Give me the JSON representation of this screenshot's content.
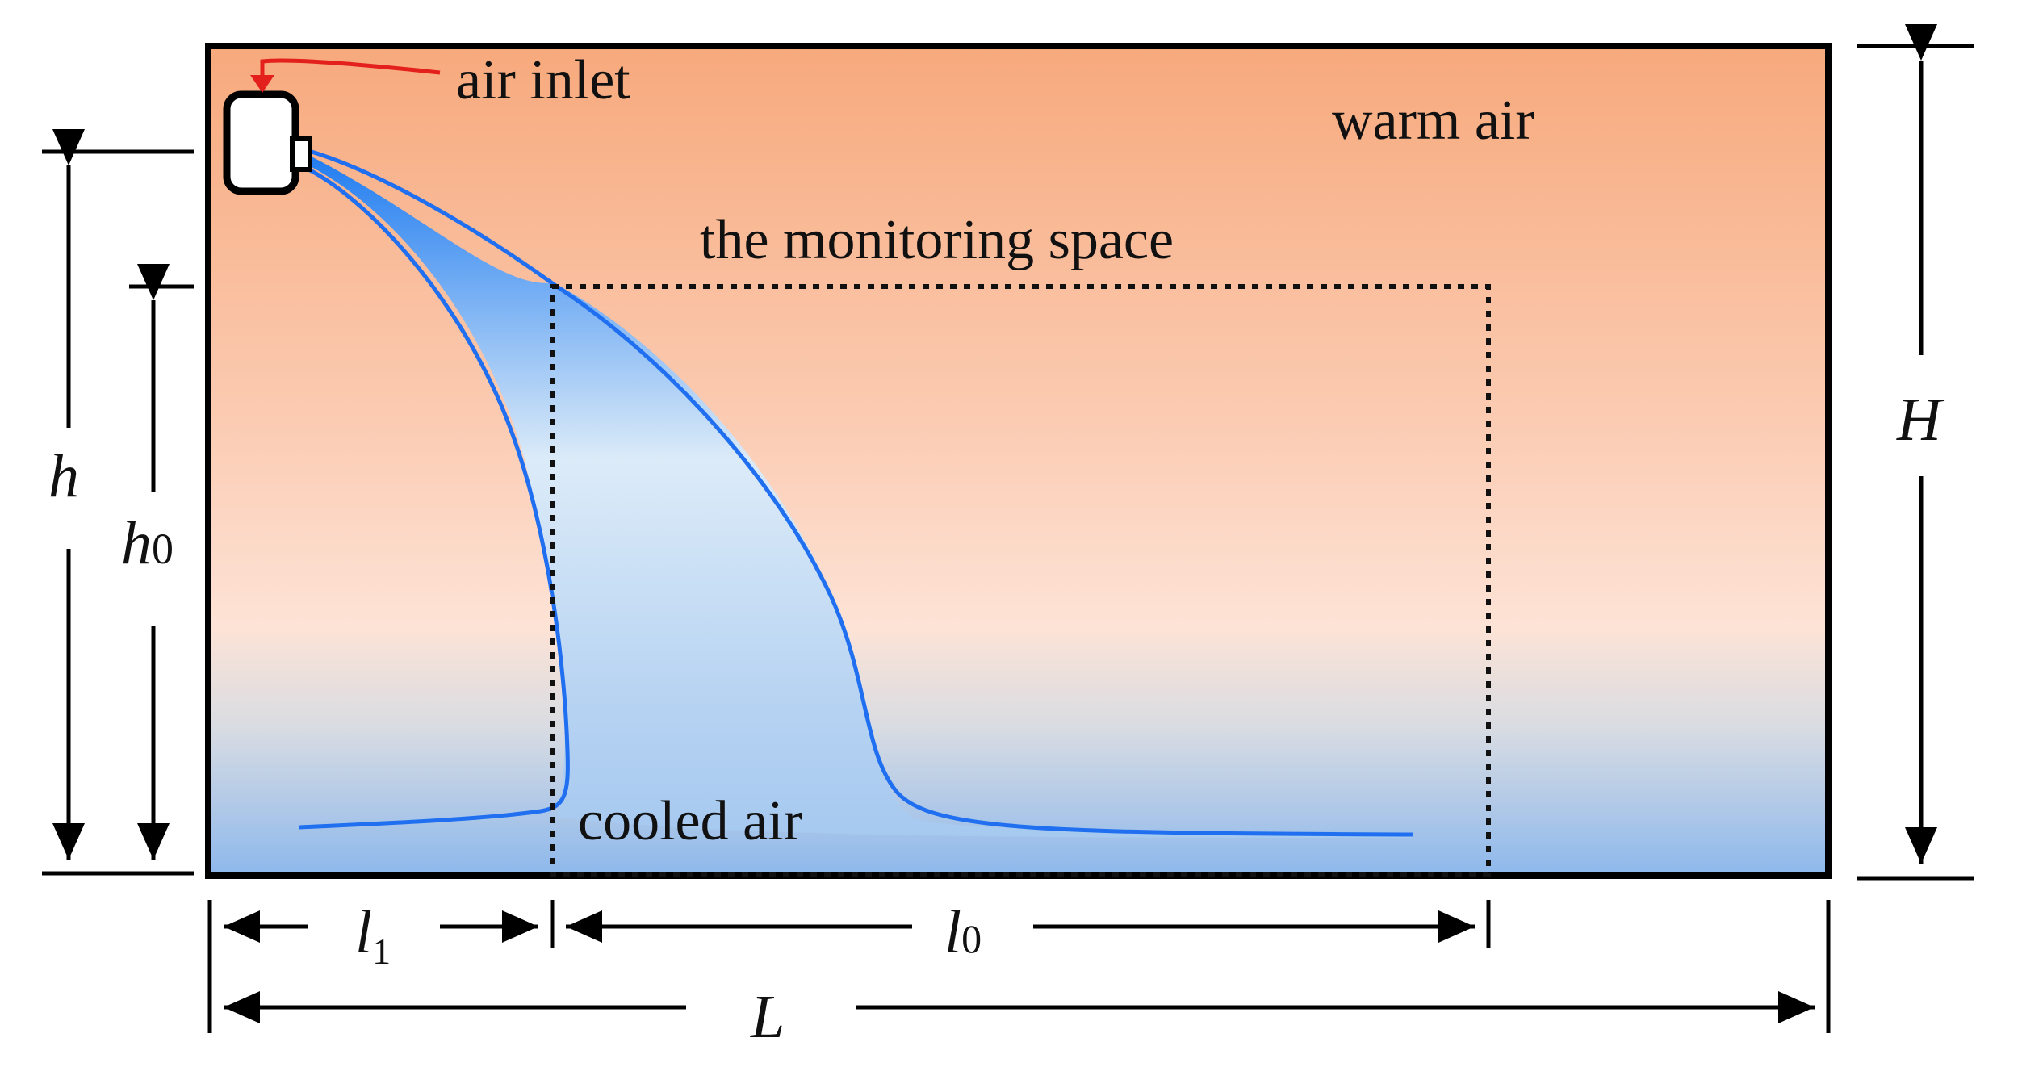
{
  "labels": {
    "air_inlet": "air inlet",
    "warm_air": "warm air",
    "monitoring_space": "the monitoring space",
    "cooled_air": "cooled air"
  },
  "dimensions": {
    "H": "H",
    "h": "h",
    "h0_main": "h",
    "h0_sub": "0",
    "l1_main": "l",
    "l1_sub": "1",
    "l0_main": "l",
    "l0_sub": "0",
    "L": "L"
  },
  "colors": {
    "warm_top": "#F7A97C",
    "warm_mid": "#FDE3D6",
    "cool_bottom": "#8DB8EC",
    "jet_dark": "#1E7BF0",
    "jet_light": "#DCEBF8",
    "jet_outline": "#1F6FF0",
    "inlet_arrow": "#E3201B"
  },
  "icons": {
    "outlet": "air-outlet-unit-icon",
    "inlet_arrow": "red-arrow-icon"
  }
}
